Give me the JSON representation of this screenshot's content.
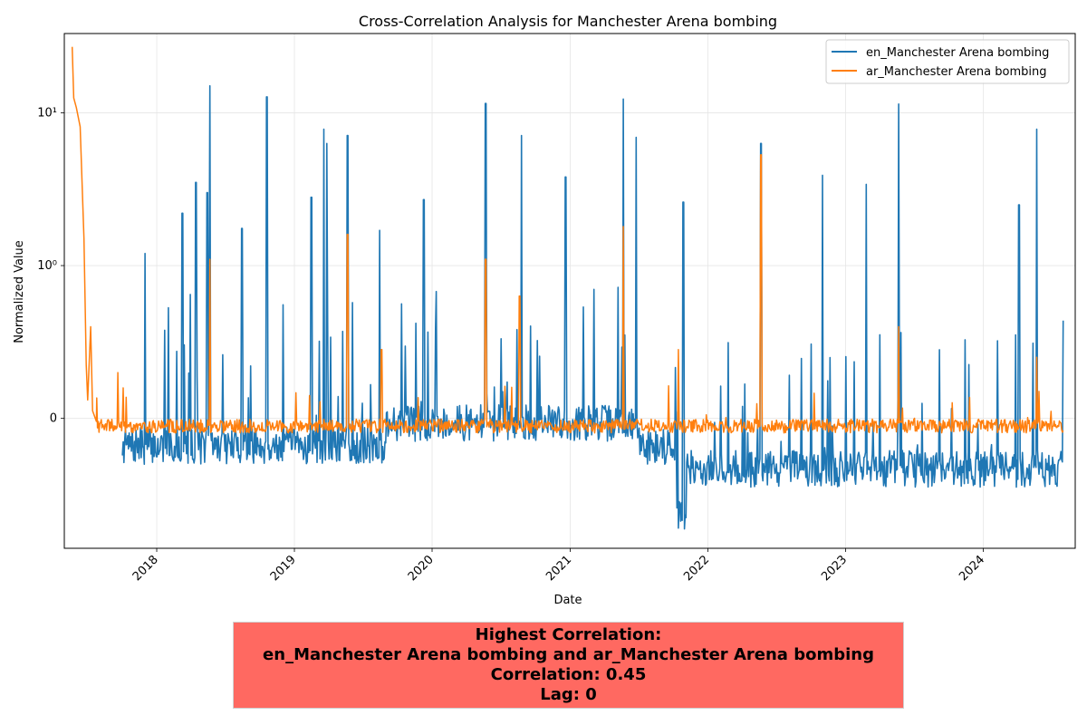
{
  "chart_data": {
    "type": "line",
    "title": "Cross-Correlation Analysis for Manchester Arena bombing",
    "xlabel": "Date",
    "ylabel": "Normalized Value",
    "x_range": [
      "2017-05-01",
      "2024-09-01"
    ],
    "x_ticks": [
      "2018",
      "2019",
      "2020",
      "2021",
      "2022",
      "2023",
      "2024"
    ],
    "y_scale": "symlog",
    "y_ticks": [
      "0",
      "10⁰",
      "10¹"
    ],
    "grid": true,
    "legend_position": "top-right",
    "series": [
      {
        "name": "en_Manchester Arena bombing",
        "color": "#1f77b4",
        "x_start": "2017-10-01",
        "x_end": "2024-07-31",
        "baseline": -0.18,
        "noise": 0.12,
        "baseline_segments": [
          {
            "from": "2019-09-01",
            "to": "2021-06-30",
            "value": -0.03
          },
          {
            "from": "2021-10-10",
            "to": "2021-11-05",
            "value": -0.62
          },
          {
            "from": "2021-11-05",
            "to": "2024-07-31",
            "value": -0.33
          }
        ],
        "peaks": [
          {
            "date": "2017-12-01",
            "value": 1.2
          },
          {
            "date": "2018-03-10",
            "value": 2.2
          },
          {
            "date": "2018-04-15",
            "value": 3.5
          },
          {
            "date": "2018-05-15",
            "value": 3.0
          },
          {
            "date": "2018-05-22",
            "value": 15.0
          },
          {
            "date": "2018-08-15",
            "value": 1.75
          },
          {
            "date": "2018-10-20",
            "value": 12.7
          },
          {
            "date": "2019-02-15",
            "value": 2.8
          },
          {
            "date": "2019-03-20",
            "value": 7.8
          },
          {
            "date": "2019-03-28",
            "value": 6.3
          },
          {
            "date": "2019-05-22",
            "value": 7.1
          },
          {
            "date": "2019-08-15",
            "value": 1.7
          },
          {
            "date": "2019-12-10",
            "value": 2.7
          },
          {
            "date": "2020-05-22",
            "value": 11.5
          },
          {
            "date": "2020-08-25",
            "value": 7.1
          },
          {
            "date": "2020-12-20",
            "value": 3.8
          },
          {
            "date": "2021-05-22",
            "value": 12.3
          },
          {
            "date": "2021-06-25",
            "value": 6.9
          },
          {
            "date": "2021-10-28",
            "value": 2.6
          },
          {
            "date": "2022-05-22",
            "value": 6.3
          },
          {
            "date": "2022-11-01",
            "value": 3.9
          },
          {
            "date": "2023-02-25",
            "value": 3.4
          },
          {
            "date": "2023-05-22",
            "value": 11.4
          },
          {
            "date": "2024-04-05",
            "value": 2.5
          },
          {
            "date": "2024-05-22",
            "value": 7.8
          }
        ]
      },
      {
        "name": "ar_Manchester Arena bombing",
        "color": "#ff7f0e",
        "x_start": "2017-05-22",
        "x_end": "2024-07-31",
        "baseline": -0.05,
        "noise": 0.045,
        "head_points": [
          {
            "date": "2017-05-22",
            "value": 27
          },
          {
            "date": "2017-05-26",
            "value": 12.5
          },
          {
            "date": "2017-06-02",
            "value": 10.8
          },
          {
            "date": "2017-06-12",
            "value": 8.1
          },
          {
            "date": "2017-06-22",
            "value": 1.5
          },
          {
            "date": "2017-06-28",
            "value": 0.35
          },
          {
            "date": "2017-07-02",
            "value": 0.12
          },
          {
            "date": "2017-07-10",
            "value": 0.6
          },
          {
            "date": "2017-07-15",
            "value": 0.05
          },
          {
            "date": "2017-07-25",
            "value": -0.02
          }
        ],
        "peaks": [
          {
            "date": "2017-09-20",
            "value": 0.3
          },
          {
            "date": "2018-05-22",
            "value": 1.1
          },
          {
            "date": "2019-05-22",
            "value": 1.6
          },
          {
            "date": "2019-08-20",
            "value": 0.45
          },
          {
            "date": "2020-05-22",
            "value": 1.1
          },
          {
            "date": "2020-08-20",
            "value": 0.8
          },
          {
            "date": "2021-05-22",
            "value": 1.8
          },
          {
            "date": "2021-10-15",
            "value": 0.45
          },
          {
            "date": "2022-05-22",
            "value": 5.3
          },
          {
            "date": "2023-05-22",
            "value": 0.6
          },
          {
            "date": "2024-05-22",
            "value": 0.4
          }
        ]
      }
    ]
  },
  "summary": {
    "line1": "Highest Correlation:",
    "line2": "en_Manchester Arena bombing and ar_Manchester Arena bombing",
    "line3": "Correlation: 0.45",
    "line4": "Lag: 0"
  }
}
